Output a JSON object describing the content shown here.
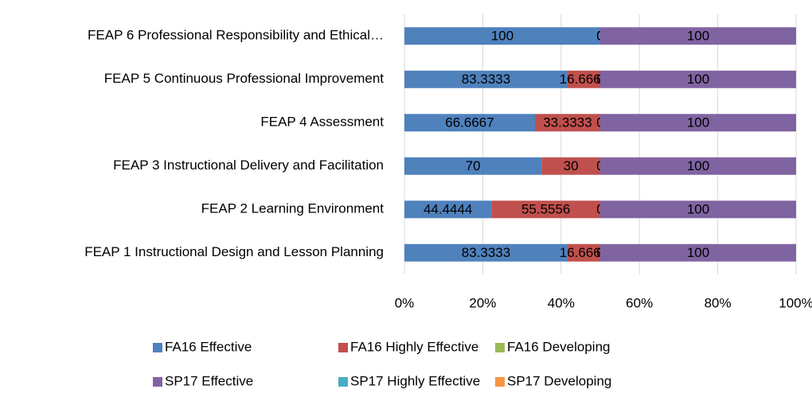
{
  "chart_data": {
    "type": "bar_stacked_percent_horizontal",
    "categories": [
      "FEAP 1 Instructional Design and Lesson Planning",
      "FEAP 2 Learning Environment",
      "FEAP 3 Instructional Delivery and Facilitation",
      "FEAP 4  Assessment",
      "FEAP 5 Continuous Professional Improvement",
      "FEAP 6 Professional Responsibility and Ethical…"
    ],
    "series": [
      {
        "name": "FA16 Effective",
        "color": "#4f81bd",
        "values": [
          83.3333,
          44.4444,
          70,
          66.6667,
          83.3333,
          100
        ],
        "data_labels": true
      },
      {
        "name": "FA16 Highly Effective",
        "color": "#c0504d",
        "values": [
          16.6667,
          55.5556,
          30,
          33.3333,
          16.6667,
          0
        ],
        "data_labels": true
      },
      {
        "name": "FA16 Developing",
        "color": "#9bbb59",
        "values": [
          0,
          0,
          0,
          0,
          0,
          0
        ],
        "data_labels": true
      },
      {
        "name": "SP17 Effective",
        "color": "#8064a2",
        "values": [
          100,
          100,
          100,
          100,
          100,
          100
        ],
        "data_labels": true
      },
      {
        "name": "SP17 Highly Effective",
        "color": "#4bacc6",
        "values": [
          0,
          0,
          0,
          0,
          0,
          0
        ],
        "data_labels": false
      },
      {
        "name": "SP17 Developing",
        "color": "#f79646",
        "values": [
          0,
          0,
          0,
          0,
          0,
          0
        ],
        "data_labels": false
      }
    ],
    "xlim": [
      0,
      100
    ],
    "xticks": [
      {
        "value": 0,
        "label": "0%"
      },
      {
        "value": 20,
        "label": "20%"
      },
      {
        "value": 40,
        "label": "40%"
      },
      {
        "value": 60,
        "label": "60%"
      },
      {
        "value": 80,
        "label": "80%"
      },
      {
        "value": 100,
        "label": "100%"
      }
    ],
    "grid": true,
    "legend": "bottom"
  }
}
